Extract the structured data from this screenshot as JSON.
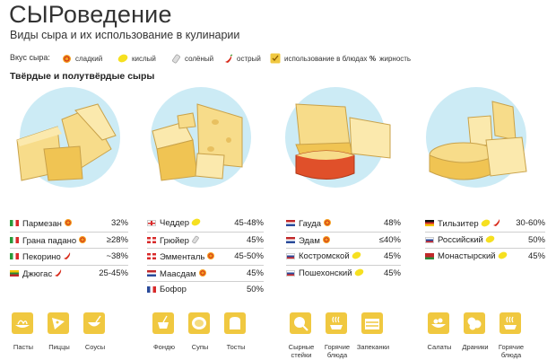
{
  "header": {
    "title": "СЫРоведение",
    "subtitle": "Виды сыра и их использование в кулинарии"
  },
  "legend": {
    "label": "Вкус сыра:",
    "items": [
      {
        "icon": "sweet-icon",
        "label": "сладкий"
      },
      {
        "icon": "sour-icon",
        "label": "кислый"
      },
      {
        "icon": "salty-icon",
        "label": "солёный"
      },
      {
        "icon": "spicy-icon",
        "label": "острый"
      },
      {
        "icon": "cooking-use-icon",
        "label": "использование в блюдах"
      },
      {
        "icon": "percent-icon",
        "label": "жирность"
      }
    ]
  },
  "section_title": "Твёрдые и полутвёрдые сыры",
  "colors": {
    "circle": "#ccebf5",
    "cheese": "#f7dc8a",
    "cheese_dark": "#f0c453",
    "rind_red": "#e0502a",
    "use_box": "#f0c840"
  },
  "groups": [
    {
      "cheeses": [
        {
          "name": "Пармезан",
          "flag": "italy",
          "taste": "sweet-icon",
          "fat": "32%"
        },
        {
          "name": "Грана падано",
          "flag": "italy",
          "taste": "sweet-icon",
          "fat": "≥28%"
        },
        {
          "name": "Пекорино",
          "flag": "italy",
          "taste": "spicy-icon",
          "fat": "~38%"
        },
        {
          "name": "Джюгас",
          "flag": "lithuania",
          "taste": "spicy-icon",
          "fat": "25-45%"
        }
      ],
      "uses": [
        "Пасты",
        "Пиццы",
        "Соусы"
      ]
    },
    {
      "cheeses": [
        {
          "name": "Чеддер",
          "flag": "uk",
          "taste": "sour-icon",
          "fat": "45-48%"
        },
        {
          "name": "Грюйер",
          "flag": "switzerland",
          "taste": "salty-icon",
          "fat": "45%"
        },
        {
          "name": "Эмменталь",
          "flag": "switzerland",
          "taste": "sweet-icon",
          "fat": "45-50%"
        },
        {
          "name": "Маасдам",
          "flag": "netherlands",
          "taste": "sweet-icon",
          "fat": "45%"
        },
        {
          "name": "Бофор",
          "flag": "france",
          "taste": "",
          "fat": "50%"
        }
      ],
      "uses": [
        "Фондю",
        "Супы",
        "Тосты"
      ]
    },
    {
      "cheeses": [
        {
          "name": "Гауда",
          "flag": "netherlands",
          "taste": "sweet-icon",
          "fat": "48%"
        },
        {
          "name": "Эдам",
          "flag": "netherlands",
          "taste": "sweet-icon",
          "fat": "≤40%"
        },
        {
          "name": "Костромской",
          "flag": "russia",
          "taste": "sour-icon",
          "fat": "45%"
        },
        {
          "name": "Пошехонский",
          "flag": "russia",
          "taste": "sour-icon",
          "fat": "45%"
        }
      ],
      "uses": [
        "Сырные стейки",
        "Горячие блюда",
        "Запеканки"
      ]
    },
    {
      "cheeses": [
        {
          "name": "Тильзитер",
          "flag": "germany",
          "taste": "sour-spicy",
          "fat": "30-60%"
        },
        {
          "name": "Российский",
          "flag": "russia",
          "taste": "sour-icon",
          "fat": "50%"
        },
        {
          "name": "Монастырский",
          "flag": "belarus",
          "taste": "sour-icon",
          "fat": "45%"
        }
      ],
      "uses": [
        "Салаты",
        "Драники",
        "Горячие блюда"
      ]
    }
  ]
}
